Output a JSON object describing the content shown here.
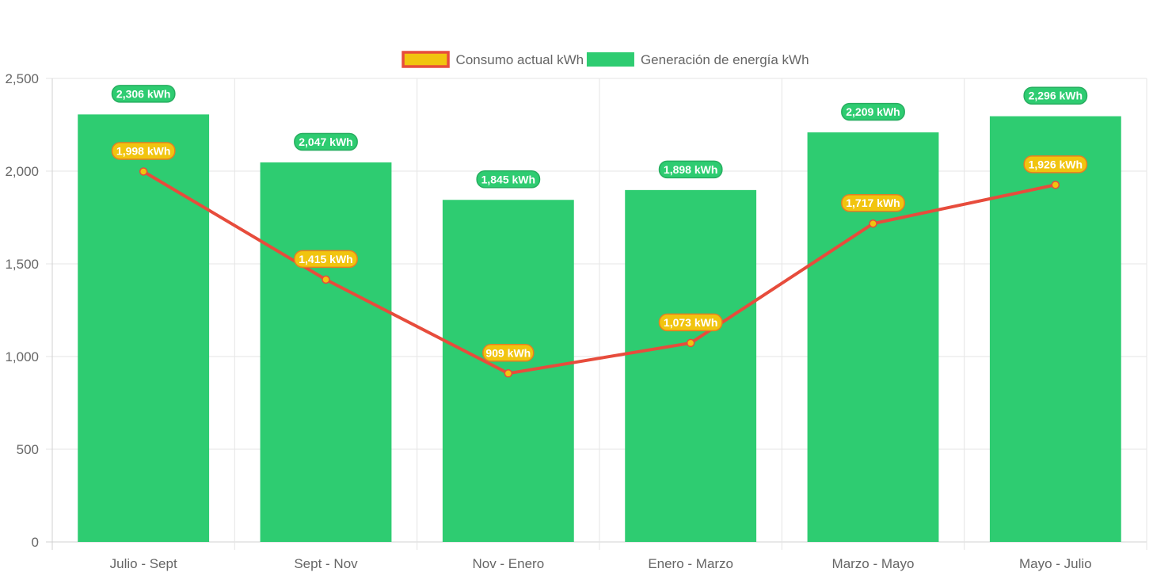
{
  "chart_data": {
    "type": "bar",
    "categories": [
      "Julio - Sept",
      "Sept - Nov",
      "Nov - Enero",
      "Enero - Marzo",
      "Marzo - Mayo",
      "Mayo - Julio"
    ],
    "series": [
      {
        "name": "Generación de energía kWh",
        "type": "bar",
        "values": [
          2306,
          2047,
          1845,
          1898,
          2209,
          2296
        ],
        "labels": [
          "2,306 kWh",
          "2,047 kWh",
          "1,845 kWh",
          "1,898 kWh",
          "2,209 kWh",
          "2,296 kWh"
        ],
        "color": "#2ecc71"
      },
      {
        "name": "Consumo actual kWh",
        "type": "line",
        "values": [
          1998,
          1415,
          909,
          1073,
          1717,
          1926
        ],
        "labels": [
          "1,998 kWh",
          "1,415 kWh",
          "909 kWh",
          "1,073 kWh",
          "1,717 kWh",
          "1,926 kWh"
        ],
        "color": "#f1c40f",
        "border_color": "#e74c3c"
      }
    ],
    "ylim": [
      0,
      2500
    ],
    "yticks": [
      0,
      500,
      1000,
      1500,
      2000,
      2500
    ],
    "ytick_labels": [
      "0",
      "500",
      "1,000",
      "1,500",
      "2,000",
      "2,500"
    ],
    "legend_order": [
      "Consumo actual kWh",
      "Generación de energía kWh"
    ],
    "legend": "top-center",
    "grid": true
  }
}
